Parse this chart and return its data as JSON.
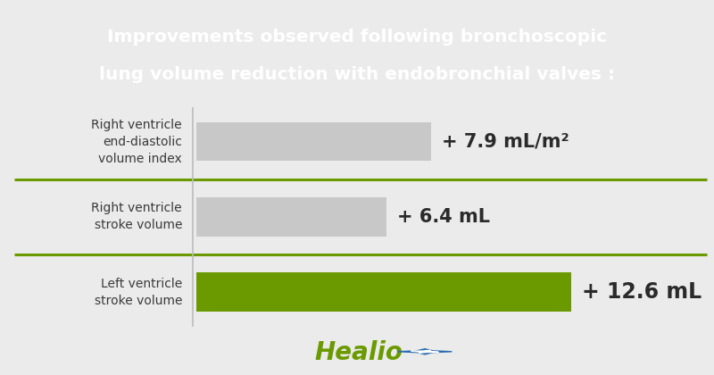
{
  "title_line1": "Improvements observed following bronchoscopic",
  "title_line2": "lung volume reduction with endobronchial valves :",
  "title_bg_color": "#6b9a00",
  "title_text_color": "#ffffff",
  "bg_color": "#ffffff",
  "chart_bg_color": "#ffffff",
  "outer_bg_color": "#ebebeb",
  "bars": [
    {
      "label_line1": "Right ventricle",
      "label_line2": "end-diastolic",
      "label_line3": "volume index",
      "value": 7.9,
      "color": "#c8c8c8",
      "annotation": "+ 7.9 mL/m²",
      "annotation_fontsize": 15
    },
    {
      "label_line1": "Right ventricle",
      "label_line2": "stroke volume",
      "label_line3": "",
      "value": 6.4,
      "color": "#c8c8c8",
      "annotation": "+ 6.4 mL",
      "annotation_fontsize": 15
    },
    {
      "label_line1": "Left ventricle",
      "label_line2": "stroke volume",
      "label_line3": "",
      "value": 12.6,
      "color": "#6b9a00",
      "annotation": "+ 12.6 mL",
      "annotation_fontsize": 17
    }
  ],
  "max_value": 12.6,
  "separator_color": "#6b9a00",
  "label_text_color": "#3a3a3a",
  "annotation_text_color": "#2a2a2a",
  "healio_text_color": "#6b9a00",
  "healio_star_blue": "#2a6cb0",
  "healio_star_green": "#6b9a00",
  "divider_line_color": "#c8c8c8",
  "vert_line_color": "#bbbbbb"
}
